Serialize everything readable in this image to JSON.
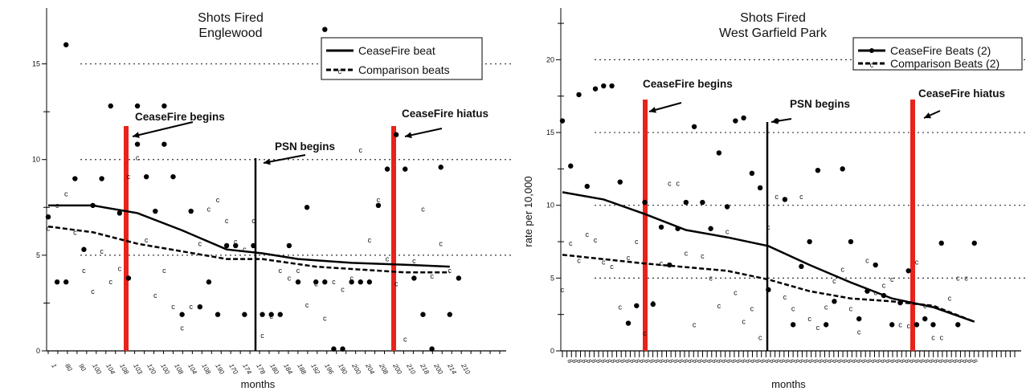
{
  "chart_data": [
    {
      "type": "scatter",
      "title": "Shots Fired",
      "subtitle": "Englewood",
      "xlabel": "months",
      "ylabel": "",
      "ylim": [
        0,
        17.5
      ],
      "yticks": [
        "0",
        "5",
        "10",
        "15"
      ],
      "grid": "dotted at 5, 10, 15",
      "legend_position": "top-right",
      "x_tick_labels": [
        "1",
        "80",
        "90",
        "100",
        "104",
        "108",
        "103",
        "120",
        "100",
        "108",
        "104",
        "108",
        "190",
        "170",
        "174",
        "178",
        "180",
        "184",
        "188",
        "192",
        "196",
        "190",
        "200",
        "204",
        "208",
        "200",
        "210",
        "218",
        "200",
        "214",
        "210"
      ],
      "series": [
        {
          "name": "CeaseFire beat",
          "marker": "dot",
          "line": "solid",
          "trend": [
            [
              0,
              7.6
            ],
            [
              5,
              7.6
            ],
            [
              10,
              7.2
            ],
            [
              15,
              6.3
            ],
            [
              20,
              5.3
            ],
            [
              24,
              5.1
            ],
            [
              28,
              4.8
            ],
            [
              34,
              4.6
            ],
            [
              40,
              4.5
            ],
            [
              45,
              4.4
            ]
          ],
          "points": [
            [
              0,
              7
            ],
            [
              1,
              3.6
            ],
            [
              2,
              3.6
            ],
            [
              3,
              9
            ],
            [
              4,
              5.3
            ],
            [
              5,
              7.6
            ],
            [
              6,
              9
            ],
            [
              7,
              12.8
            ],
            [
              8,
              7.2
            ],
            [
              9,
              3.8
            ],
            [
              10,
              10.8
            ],
            [
              10,
              12.8
            ],
            [
              11,
              9.1
            ],
            [
              12,
              7.3
            ],
            [
              13,
              12.8
            ],
            [
              13,
              10.8
            ],
            [
              14,
              9.1
            ],
            [
              15,
              1.9
            ],
            [
              16,
              7.3
            ],
            [
              17,
              2.3
            ],
            [
              18,
              3.6
            ],
            [
              19,
              1.9
            ],
            [
              20,
              5.5
            ],
            [
              21,
              5.5
            ],
            [
              22,
              1.9
            ],
            [
              23,
              5.5
            ],
            [
              24,
              1.9
            ],
            [
              25,
              1.9
            ],
            [
              26,
              1.9
            ],
            [
              27,
              5.5
            ],
            [
              28,
              3.6
            ],
            [
              29,
              7.5
            ],
            [
              30,
              3.6
            ],
            [
              31,
              3.6
            ],
            [
              32,
              0.1
            ],
            [
              33,
              0.1
            ],
            [
              34,
              3.6
            ],
            [
              35,
              3.6
            ],
            [
              36,
              3.6
            ],
            [
              37,
              7.6
            ],
            [
              38,
              9.5
            ],
            [
              39,
              11.3
            ],
            [
              40,
              9.5
            ],
            [
              41,
              3.8
            ],
            [
              42,
              1.9
            ],
            [
              43,
              0.1
            ],
            [
              44,
              9.6
            ],
            [
              45,
              1.9
            ],
            [
              46,
              3.8
            ],
            [
              2,
              16
            ],
            [
              31,
              16.8
            ]
          ]
        },
        {
          "name": "Comparison beats",
          "marker": "c",
          "line": "dashed",
          "trend": [
            [
              0,
              6.5
            ],
            [
              5,
              6.2
            ],
            [
              10,
              5.6
            ],
            [
              15,
              5.2
            ],
            [
              20,
              4.8
            ],
            [
              24,
              4.8
            ],
            [
              30,
              4.4
            ],
            [
              40,
              4.1
            ],
            [
              45,
              4.1
            ]
          ],
          "points": [
            [
              0,
              6.4
            ],
            [
              1,
              7.6
            ],
            [
              2,
              8.2
            ],
            [
              3,
              6.2
            ],
            [
              4,
              4.2
            ],
            [
              5,
              3.1
            ],
            [
              6,
              5.2
            ],
            [
              7,
              3.6
            ],
            [
              8,
              4.3
            ],
            [
              9,
              9.1
            ],
            [
              10,
              10.1
            ],
            [
              11,
              5.8
            ],
            [
              12,
              2.9
            ],
            [
              13,
              4.2
            ],
            [
              14,
              2.3
            ],
            [
              15,
              1.2
            ],
            [
              16,
              2.3
            ],
            [
              17,
              5.6
            ],
            [
              18,
              7.4
            ],
            [
              19,
              7.9
            ],
            [
              20,
              6.8
            ],
            [
              21,
              5.7
            ],
            [
              22,
              5.3
            ],
            [
              23,
              6.8
            ],
            [
              24,
              0.8
            ],
            [
              25,
              1.8
            ],
            [
              26,
              4.2
            ],
            [
              27,
              3.8
            ],
            [
              28,
              4.2
            ],
            [
              29,
              2.4
            ],
            [
              30,
              3.5
            ],
            [
              31,
              1.7
            ],
            [
              32,
              3.6
            ],
            [
              33,
              3.2
            ],
            [
              34,
              3.8
            ],
            [
              35,
              10.5
            ],
            [
              36,
              5.8
            ],
            [
              37,
              7.9
            ],
            [
              38,
              4.8
            ],
            [
              39,
              3.5
            ],
            [
              40,
              0.6
            ],
            [
              41,
              4.7
            ],
            [
              42,
              7.4
            ],
            [
              43,
              3.9
            ],
            [
              44,
              5.6
            ],
            [
              45,
              4.2
            ]
          ]
        }
      ],
      "annotations": [
        {
          "label": "CeaseFire begins",
          "x": 10,
          "color": "#e8231b"
        },
        {
          "label": "PSN begins",
          "x": 24,
          "color": "#000000"
        },
        {
          "label": "CeaseFire hiatus",
          "x": 37,
          "color": "#e8231b"
        }
      ]
    },
    {
      "type": "scatter",
      "title": "Shots Fired",
      "subtitle": "West Garfield Park",
      "xlabel": "months",
      "ylabel": "rate per 10,000",
      "ylim": [
        0,
        23
      ],
      "yticks": [
        "0",
        "5",
        "10",
        "15",
        "20"
      ],
      "grid": "dotted at 5, 10, 15, 20",
      "legend_position": "top-right",
      "series": [
        {
          "name": "CeaseFire Beats (2)",
          "marker": "dot",
          "line": "solid",
          "trend": [
            [
              0,
              10.9
            ],
            [
              5,
              10.4
            ],
            [
              10,
              9.4
            ],
            [
              15,
              8.3
            ],
            [
              20,
              7.8
            ],
            [
              25,
              7.2
            ],
            [
              30,
              5.9
            ],
            [
              35,
              4.7
            ],
            [
              40,
              3.6
            ],
            [
              45,
              3.0
            ],
            [
              50,
              2.0
            ]
          ],
          "points": [
            [
              0,
              15.8
            ],
            [
              1,
              12.7
            ],
            [
              2,
              17.6
            ],
            [
              3,
              11.3
            ],
            [
              4,
              18
            ],
            [
              5,
              18.2
            ],
            [
              6,
              18.2
            ],
            [
              7,
              11.6
            ],
            [
              8,
              1.9
            ],
            [
              9,
              3.1
            ],
            [
              10,
              10.2
            ],
            [
              11,
              3.2
            ],
            [
              12,
              8.5
            ],
            [
              13,
              5.9
            ],
            [
              14,
              8.4
            ],
            [
              15,
              10.2
            ],
            [
              16,
              15.4
            ],
            [
              17,
              10.2
            ],
            [
              18,
              8.4
            ],
            [
              19,
              13.6
            ],
            [
              20,
              9.9
            ],
            [
              21,
              15.8
            ],
            [
              22,
              16
            ],
            [
              23,
              12.2
            ],
            [
              24,
              11.2
            ],
            [
              25,
              4.2
            ],
            [
              26,
              15.8
            ],
            [
              27,
              10.4
            ],
            [
              28,
              1.8
            ],
            [
              29,
              5.8
            ],
            [
              30,
              7.5
            ],
            [
              31,
              12.4
            ],
            [
              32,
              1.8
            ],
            [
              33,
              3.4
            ],
            [
              34,
              12.5
            ],
            [
              35,
              7.5
            ],
            [
              36,
              2.2
            ],
            [
              37,
              4.1
            ],
            [
              38,
              5.9
            ],
            [
              39,
              3.8
            ],
            [
              40,
              1.8
            ],
            [
              41,
              3.3
            ],
            [
              42,
              5.5
            ],
            [
              43,
              1.8
            ],
            [
              44,
              2.2
            ],
            [
              45,
              1.8
            ],
            [
              46,
              7.4
            ],
            [
              48,
              1.8
            ],
            [
              50,
              7.4
            ]
          ]
        },
        {
          "name": "Comparison Beats (2)",
          "marker": "c",
          "line": "dashed",
          "trend": [
            [
              0,
              6.6
            ],
            [
              10,
              6.0
            ],
            [
              20,
              5.5
            ],
            [
              25,
              4.9
            ],
            [
              30,
              4.1
            ],
            [
              35,
              3.6
            ],
            [
              40,
              3.4
            ],
            [
              45,
              3.1
            ],
            [
              50,
              2.0
            ]
          ],
          "points": [
            [
              0,
              4.2
            ],
            [
              1,
              7.4
            ],
            [
              2,
              6.2
            ],
            [
              3,
              8.0
            ],
            [
              4,
              7.6
            ],
            [
              5,
              6.1
            ],
            [
              6,
              5.8
            ],
            [
              7,
              3.0
            ],
            [
              8,
              6.4
            ],
            [
              9,
              7.5
            ],
            [
              10,
              1.2
            ],
            [
              11,
              3.3
            ],
            [
              12,
              6.0
            ],
            [
              13,
              11.5
            ],
            [
              14,
              11.5
            ],
            [
              15,
              6.7
            ],
            [
              16,
              1.8
            ],
            [
              17,
              6.5
            ],
            [
              18,
              5.0
            ],
            [
              19,
              3.1
            ],
            [
              20,
              8.2
            ],
            [
              21,
              4.0
            ],
            [
              22,
              2.0
            ],
            [
              23,
              2.9
            ],
            [
              24,
              0.9
            ],
            [
              25,
              8.5
            ],
            [
              26,
              10.6
            ],
            [
              27,
              3.7
            ],
            [
              28,
              2.9
            ],
            [
              29,
              10.6
            ],
            [
              30,
              2.2
            ],
            [
              31,
              1.6
            ],
            [
              32,
              3.0
            ],
            [
              33,
              4.8
            ],
            [
              34,
              5.6
            ],
            [
              35,
              2.9
            ],
            [
              36,
              1.3
            ],
            [
              37,
              6.2
            ],
            [
              38,
              4.0
            ],
            [
              39,
              4.5
            ],
            [
              40,
              4.9
            ],
            [
              41,
              1.8
            ],
            [
              42,
              1.7
            ],
            [
              43,
              6.1
            ],
            [
              44,
              3.1
            ],
            [
              45,
              0.9
            ],
            [
              46,
              0.9
            ],
            [
              47,
              3.6
            ],
            [
              48,
              5.0
            ],
            [
              49,
              5.0
            ]
          ]
        }
      ],
      "annotations": [
        {
          "label": "CeaseFire begins",
          "x": 8,
          "color": "#e8231b"
        },
        {
          "label": "PSN begins",
          "x": 26,
          "color": "#000000"
        },
        {
          "label": "CeaseFire hiatus",
          "x": 44,
          "color": "#e8231b"
        }
      ]
    }
  ]
}
